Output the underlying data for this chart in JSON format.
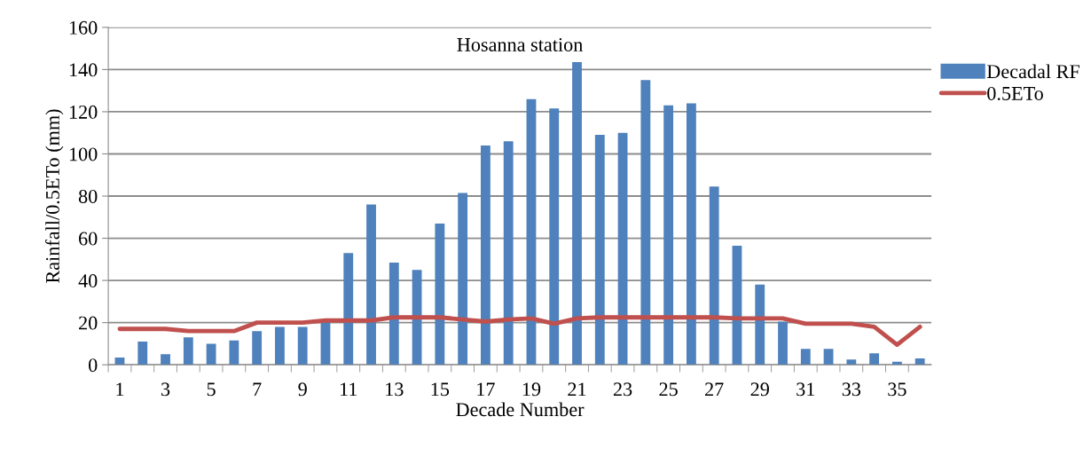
{
  "chart_data": {
    "type": "bar",
    "title": "Hosanna station",
    "xlabel": "Decade Number",
    "ylabel": "Rainfall/0.5ETo (mm)",
    "categories": [
      "1",
      null,
      "3",
      null,
      "5",
      null,
      "7",
      null,
      "9",
      null,
      "11",
      null,
      "13",
      null,
      "15",
      null,
      "17",
      null,
      "19",
      null,
      "21",
      null,
      "23",
      null,
      "25",
      null,
      "27",
      null,
      "29",
      null,
      "31",
      null,
      "33",
      null,
      "35",
      null
    ],
    "series": [
      {
        "name": "Decadal RF",
        "color": "#4f81bd",
        "values": [
          3.5,
          11,
          5,
          13,
          10,
          11.5,
          16,
          18,
          18,
          20.5,
          53,
          76,
          48.5,
          45,
          67,
          81.5,
          104,
          106,
          126,
          121.5,
          143.5,
          109,
          110,
          135,
          123,
          124,
          84.5,
          56.5,
          38,
          20.5,
          7.5,
          7.5,
          2.5,
          5.5,
          1.5,
          3
        ]
      },
      {
        "name": "0.5ETo",
        "type": "line",
        "color": "#c0504d",
        "values": [
          17,
          17,
          17,
          16,
          16,
          16,
          20,
          20,
          20,
          21,
          21,
          21,
          22.5,
          22.5,
          22.5,
          21.5,
          20.5,
          21.5,
          22,
          19.5,
          22,
          22.5,
          22.5,
          22.5,
          22.5,
          22.5,
          22.5,
          22,
          22,
          22,
          19.5,
          19.5,
          19.5,
          18,
          9.5,
          18
        ]
      }
    ],
    "ylim": [
      0,
      160
    ],
    "yticks": [
      0,
      20,
      40,
      60,
      80,
      100,
      120,
      140,
      160
    ],
    "grid": "y",
    "legend": "top right",
    "marker": "none",
    "line_style": "solid"
  }
}
